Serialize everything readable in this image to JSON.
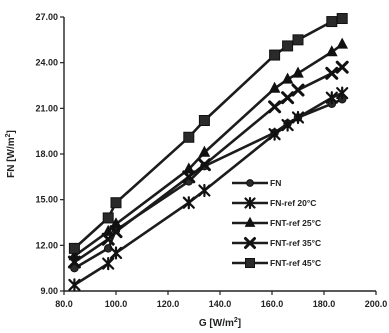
{
  "chart_data": {
    "type": "line",
    "xlabel": "G [W/m",
    "xlabel_sup": "2",
    "xlabel_end": "]",
    "ylabel": "FN  [W/m",
    "ylabel_sup": "2",
    "ylabel_end": "]",
    "xlim": [
      80.0,
      200.0
    ],
    "ylim": [
      9.0,
      27.0
    ],
    "xticks": [
      "80.0",
      "100.0",
      "120.0",
      "140.0",
      "160.0",
      "180.0",
      "200.0"
    ],
    "yticks": [
      "9.00",
      "12.00",
      "15.00",
      "18.00",
      "21.00",
      "24.00",
      "27.00"
    ],
    "grid": false,
    "legend_position": "center-right",
    "series": [
      {
        "name": "FN",
        "marker": "circle",
        "x": [
          84,
          97,
          100,
          128,
          134,
          161,
          166,
          170,
          183,
          187
        ],
        "y": [
          10.5,
          11.8,
          13.0,
          16.2,
          17.2,
          19.4,
          20.0,
          20.4,
          21.3,
          21.6
        ]
      },
      {
        "name": "FN-ref 20°C",
        "marker": "asterisk",
        "x": [
          84,
          97,
          100,
          128,
          134,
          161,
          166,
          170,
          183,
          187
        ],
        "y": [
          9.4,
          10.8,
          11.5,
          14.8,
          15.6,
          19.3,
          19.9,
          20.4,
          21.7,
          22.0
        ]
      },
      {
        "name": "FNT-ref 25°C",
        "marker": "triangle",
        "x": [
          84,
          97,
          100,
          128,
          134,
          161,
          166,
          170,
          183,
          187
        ],
        "y": [
          11.3,
          12.9,
          13.4,
          17.0,
          18.1,
          22.3,
          22.9,
          23.3,
          24.7,
          25.2
        ]
      },
      {
        "name": "FNT-ref 35°C",
        "marker": "x",
        "x": [
          84,
          97,
          100,
          128,
          134,
          161,
          166,
          170,
          183,
          187
        ],
        "y": [
          10.9,
          12.4,
          12.9,
          16.5,
          17.3,
          21.1,
          21.7,
          22.2,
          23.3,
          23.7
        ]
      },
      {
        "name": "FNT-ref 45°C",
        "marker": "square",
        "x": [
          84,
          97,
          100,
          128,
          134,
          161,
          166,
          170,
          183,
          187
        ],
        "y": [
          11.8,
          13.8,
          14.8,
          19.1,
          20.2,
          24.5,
          25.1,
          25.5,
          26.7,
          26.9
        ]
      }
    ]
  }
}
